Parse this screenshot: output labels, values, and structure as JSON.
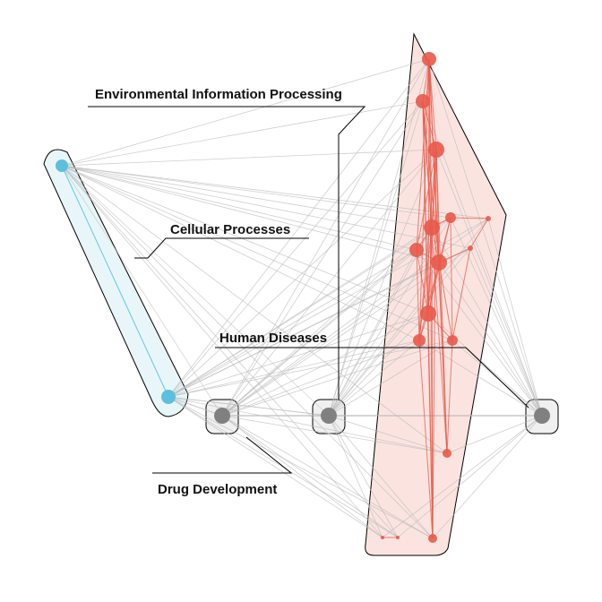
{
  "groups": [
    {
      "id": "cellular",
      "label": "Cellular Processes",
      "color": "#5BC0DE"
    },
    {
      "id": "drug",
      "label": "Drug Development",
      "color": "#808080"
    },
    {
      "id": "env",
      "label": "Environmental Information Processing",
      "color": "#808080"
    },
    {
      "id": "human",
      "label": "Human Diseases",
      "color": "#808080"
    },
    {
      "id": "red",
      "label": "",
      "color": "#E8594A"
    }
  ],
  "colors": {
    "cluster_fill_blue": "#E8F6FA",
    "cluster_fill_red": "#FBE4E0",
    "cluster_fill_grey": "#F0F0F0",
    "edge_grey": "#BBBBBB",
    "edge_red": "#E8594A",
    "edge_blue": "#5BC0DE"
  }
}
